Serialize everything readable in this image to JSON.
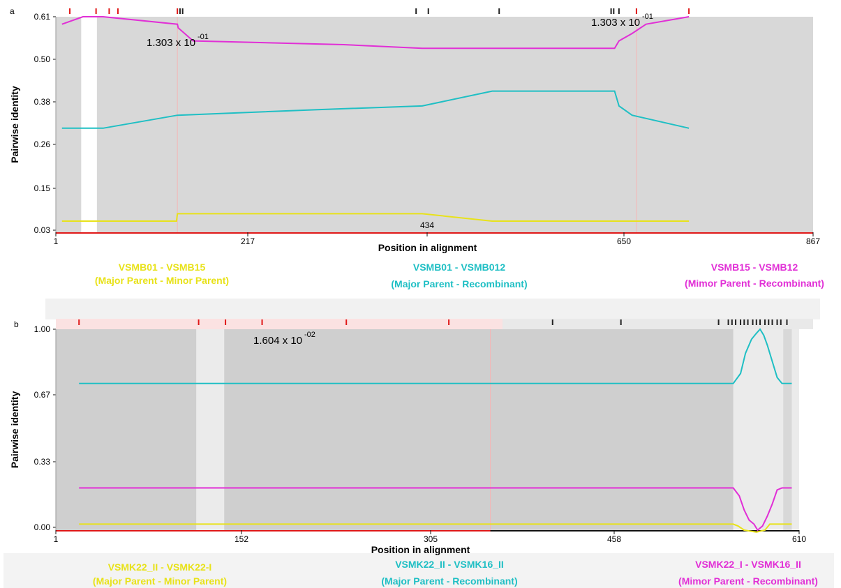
{
  "chart_data": [
    {
      "panel_label": "a",
      "type": "line",
      "xlabel": "Position in alignment",
      "ylabel": "Pairwise identity",
      "xlim": [
        1,
        867
      ],
      "ylim": [
        0.03,
        0.61
      ],
      "xticks": [
        "1",
        "217",
        "434",
        "650",
        "867"
      ],
      "yticks": [
        "0.61",
        "0.50",
        "0.38",
        "0.26",
        "0.15",
        "0.03"
      ],
      "annotations": [
        {
          "base": "1.303 x 10",
          "exp": "-01",
          "x": 203
        },
        {
          "base": "1.303 x 10",
          "exp": "-01",
          "x": 666
        }
      ],
      "top_marks_red": [
        17,
        47,
        62,
        72,
        140,
        665,
        725
      ],
      "top_marks_black": [
        143,
        146,
        413,
        427,
        508,
        636,
        639,
        645
      ],
      "shaded_bands": [
        [
          1,
          30
        ],
        [
          48,
          867
        ]
      ],
      "series": [
        {
          "name": "VSMB15 - VSMB12",
          "legend_sub": "(Mimor Parent - Recombinant)",
          "color": "#e12fd6",
          "x": [
            8,
            32,
            55,
            140,
            141,
            158,
            330,
            420,
            500,
            590,
            640,
            645,
            660,
            676,
            725
          ],
          "y": [
            0.59,
            0.61,
            0.61,
            0.59,
            0.58,
            0.545,
            0.535,
            0.525,
            0.525,
            0.525,
            0.525,
            0.545,
            0.565,
            0.59,
            0.61
          ]
        },
        {
          "name": "VSMB01 - VSMB012",
          "legend_sub": "(Major Parent - Recombinant)",
          "color": "#1fbfc4",
          "x": [
            8,
            55,
            140,
            300,
            420,
            500,
            640,
            645,
            660,
            725
          ],
          "y": [
            0.31,
            0.31,
            0.345,
            0.36,
            0.37,
            0.41,
            0.41,
            0.37,
            0.345,
            0.31
          ]
        },
        {
          "name": "VSMB01 - VSMB15",
          "legend_sub": "(Major Parent - Minor Parent)",
          "color": "#e8e21a",
          "x": [
            8,
            139,
            140,
            300,
            420,
            500,
            640,
            725
          ],
          "y": [
            0.06,
            0.06,
            0.08,
            0.08,
            0.08,
            0.06,
            0.06,
            0.06
          ]
        }
      ]
    },
    {
      "panel_label": "b",
      "type": "line",
      "xlabel": "Position in alignment",
      "ylabel": "Pairwise identity",
      "xlim": [
        1,
        610
      ],
      "ylim": [
        0.0,
        1.0
      ],
      "xticks": [
        "1",
        "152",
        "305",
        "458",
        "610"
      ],
      "yticks": [
        "1.00",
        "0.67",
        "0.33",
        "0.00"
      ],
      "annotations": [
        {
          "base": "1.604 x 10",
          "exp": "-02",
          "x": 165
        }
      ],
      "top_marks_red": [
        20,
        118,
        140,
        170,
        239,
        323
      ],
      "top_marks_black": [
        408,
        464,
        544,
        552,
        555,
        558,
        562,
        565,
        568,
        572,
        575,
        578,
        582,
        585,
        588,
        592,
        595,
        600
      ],
      "shaded_bands": [
        [
          1,
          116
        ],
        [
          139,
          556
        ],
        [
          597,
          604
        ]
      ],
      "series": [
        {
          "name": "VSMK22_II - VSMK16_II",
          "legend_sub": "(Major Parent - Recombinant)",
          "color": "#1fbfc4",
          "x": [
            20,
            556,
            562,
            566,
            571,
            575,
            578,
            581,
            584,
            588,
            592,
            596,
            600,
            604
          ],
          "y": [
            0.73,
            0.73,
            0.78,
            0.88,
            0.95,
            0.98,
            1.0,
            0.97,
            0.92,
            0.84,
            0.76,
            0.73,
            0.73,
            0.73
          ]
        },
        {
          "name": "VSMK22_I - VSMK16_II",
          "legend_sub": "(Mimor Parent - Recombinant)",
          "color": "#e12fd6",
          "x": [
            20,
            556,
            561,
            565,
            569,
            573,
            576,
            580,
            584,
            588,
            592,
            596,
            604
          ],
          "y": [
            0.21,
            0.21,
            0.17,
            0.1,
            0.05,
            0.03,
            0.0,
            0.02,
            0.07,
            0.13,
            0.2,
            0.21,
            0.21
          ]
        },
        {
          "name": "VSMK22_II - VSMK22-I",
          "legend_sub": "(Major Parent - Minor Parent)",
          "color": "#e8e21a",
          "x": [
            20,
            556,
            560,
            565,
            575,
            582,
            586,
            604
          ],
          "y": [
            0.03,
            0.03,
            0.02,
            0.0,
            -0.01,
            0.0,
            0.03,
            0.03
          ]
        }
      ]
    }
  ]
}
